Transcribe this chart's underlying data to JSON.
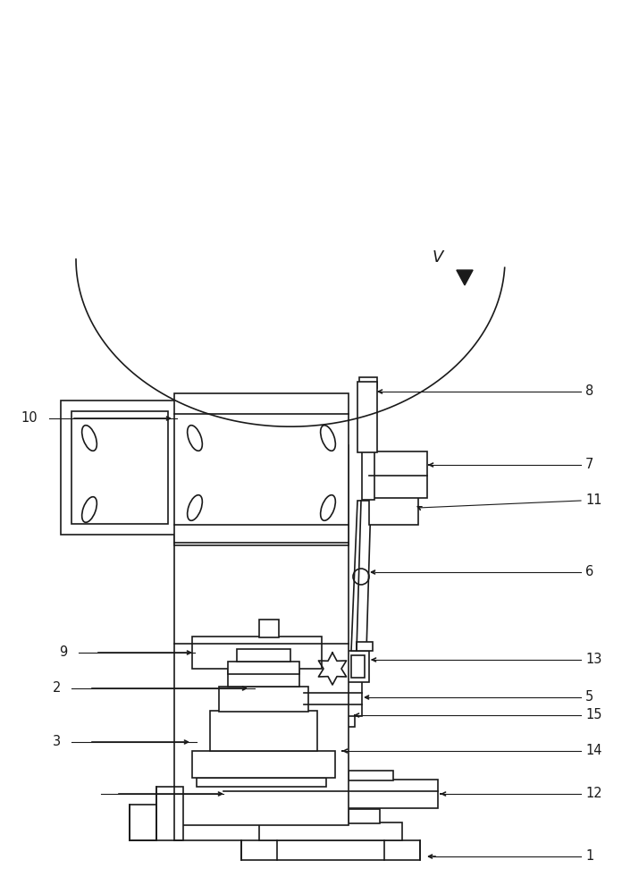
{
  "bg_color": "#ffffff",
  "line_color": "#1a1a1a",
  "line_width": 1.2,
  "fig_width": 6.96,
  "fig_height": 10.0
}
